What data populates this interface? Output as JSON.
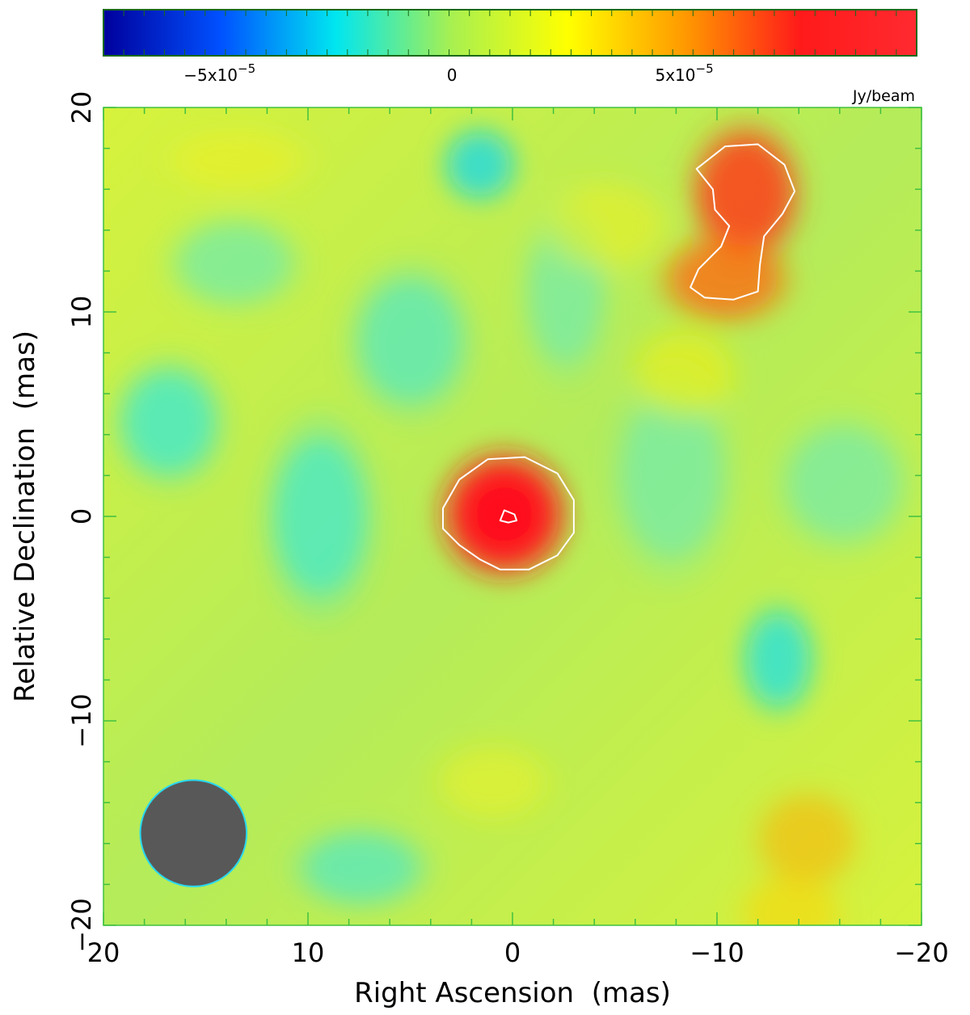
{
  "chart_data": {
    "type": "heatmap",
    "title": "",
    "xlabel": "Right Ascension  (mas)",
    "ylabel": "Relative Declination  (mas)",
    "xlim": [
      20,
      -20
    ],
    "ylim": [
      -20,
      20
    ],
    "x_ticks": [
      20,
      10,
      0,
      -10,
      -20
    ],
    "y_ticks": [
      20,
      10,
      0,
      -10,
      -20
    ],
    "x_tick_labels": [
      "20",
      "10",
      "0",
      "−10",
      "−20"
    ],
    "y_tick_labels": [
      "20",
      "10",
      "0",
      "−10",
      "−20"
    ],
    "colorbar": {
      "unit": "Jy/beam",
      "range": [
        -7.5e-05,
        0.0001
      ],
      "ticks": [
        -5e-05,
        0,
        5e-05
      ],
      "tick_labels": [
        "−5x10",
        "0",
        "5x10"
      ],
      "tick_exponents": [
        "−5",
        "",
        "−5"
      ],
      "colormap": [
        "#00009c",
        "#0050ff",
        "#00e6f0",
        "#a8f050",
        "#ffff00",
        "#ff9a00",
        "#ff1a1a",
        "#ff2a30"
      ]
    },
    "background_colors": [
      "#b4ec5a",
      "#d6f23c"
    ],
    "components": [
      {
        "x": 0.4,
        "y": 0.1,
        "amp": 1.0,
        "sx": 1.8,
        "sy": 1.8,
        "color": "#ff1a1a"
      },
      {
        "x": -11.4,
        "y": 15.8,
        "amp": 0.75,
        "sx": 1.6,
        "sy": 2.0,
        "color": "#ff3a1a"
      },
      {
        "x": -10.4,
        "y": 11.6,
        "amp": 0.65,
        "sx": 1.9,
        "sy": 1.3,
        "color": "#ff6a10"
      },
      {
        "x": -14.4,
        "y": -15.8,
        "amp": 0.35,
        "sx": 1.6,
        "sy": 1.5,
        "color": "#ffae00"
      },
      {
        "x": -13.6,
        "y": -19.4,
        "amp": 0.35,
        "sx": 1.6,
        "sy": 1.2,
        "color": "#ffd400"
      },
      {
        "x": 1.6,
        "y": 17.2,
        "amp": 0.6,
        "sx": 1.1,
        "sy": 1.1,
        "color": "#10d8f0"
      },
      {
        "x": -13.0,
        "y": -7.0,
        "amp": 0.55,
        "sx": 1.1,
        "sy": 1.6,
        "color": "#10e0f0"
      },
      {
        "x": 16.8,
        "y": 4.6,
        "amp": 0.55,
        "sx": 1.6,
        "sy": 1.8,
        "color": "#30e8e0"
      },
      {
        "x": 9.4,
        "y": 0.0,
        "amp": 0.5,
        "sx": 1.6,
        "sy": 2.8,
        "color": "#30e8e0"
      },
      {
        "x": 5.0,
        "y": 8.6,
        "amp": 0.45,
        "sx": 1.8,
        "sy": 2.2,
        "color": "#40e8d8"
      },
      {
        "x": 13.6,
        "y": 12.4,
        "amp": 0.35,
        "sx": 2.0,
        "sy": 1.4,
        "color": "#50ecd0"
      },
      {
        "x": 7.4,
        "y": -17.2,
        "amp": 0.45,
        "sx": 2.0,
        "sy": 1.2,
        "color": "#40e8d8"
      },
      {
        "x": -7.8,
        "y": 2.0,
        "amp": 0.35,
        "sx": 1.8,
        "sy": 3.0,
        "color": "#58eccc"
      },
      {
        "x": -16.2,
        "y": 1.6,
        "amp": 0.35,
        "sx": 2.0,
        "sy": 2.0,
        "color": "#58eccc"
      },
      {
        "x": -2.6,
        "y": 11.0,
        "amp": 0.35,
        "sx": 1.3,
        "sy": 2.6,
        "color": "#58eccc"
      },
      {
        "x": 13.4,
        "y": 17.4,
        "amp": 0.35,
        "sx": 2.2,
        "sy": 1.0,
        "color": "#f0f020"
      },
      {
        "x": -4.6,
        "y": 14.2,
        "amp": 0.35,
        "sx": 2.0,
        "sy": 1.4,
        "color": "#f0f020"
      },
      {
        "x": -8.4,
        "y": 7.0,
        "amp": 0.45,
        "sx": 1.6,
        "sy": 1.4,
        "color": "#f0f010"
      },
      {
        "x": 1.0,
        "y": -13.0,
        "amp": 0.3,
        "sx": 1.8,
        "sy": 1.2,
        "color": "#f0f020"
      }
    ],
    "contours": [
      {
        "level": "outer",
        "color": "#ffffff",
        "points": [
          [
            -9.0,
            17.0
          ],
          [
            -10.4,
            18.1
          ],
          [
            -12.0,
            18.2
          ],
          [
            -13.3,
            17.2
          ],
          [
            -13.8,
            15.9
          ],
          [
            -13.2,
            14.8
          ],
          [
            -12.3,
            13.7
          ],
          [
            -12.1,
            12.3
          ],
          [
            -12.0,
            11.0
          ],
          [
            -10.8,
            10.6
          ],
          [
            -9.4,
            10.7
          ],
          [
            -8.7,
            11.2
          ],
          [
            -9.1,
            12.1
          ],
          [
            -10.2,
            13.2
          ],
          [
            -10.6,
            14.2
          ],
          [
            -9.9,
            15.0
          ],
          [
            -9.8,
            16.0
          ]
        ]
      },
      {
        "level": "outer",
        "color": "#ffffff",
        "points": [
          [
            3.4,
            0.4
          ],
          [
            2.6,
            1.8
          ],
          [
            1.2,
            2.8
          ],
          [
            -0.6,
            2.9
          ],
          [
            -2.2,
            2.1
          ],
          [
            -3.0,
            0.8
          ],
          [
            -3.0,
            -0.8
          ],
          [
            -2.2,
            -1.9
          ],
          [
            -0.8,
            -2.6
          ],
          [
            0.6,
            -2.6
          ],
          [
            1.6,
            -2.1
          ],
          [
            2.6,
            -1.4
          ],
          [
            3.4,
            -0.6
          ]
        ]
      },
      {
        "level": "peak",
        "color": "#ffffff",
        "points": [
          [
            0.6,
            -0.2
          ],
          [
            0.4,
            0.3
          ],
          [
            -0.1,
            0.1
          ],
          [
            -0.2,
            -0.2
          ],
          [
            0.2,
            -0.3
          ]
        ]
      }
    ],
    "beam": {
      "x": 15.6,
      "y": -15.5,
      "major": 5.2,
      "minor": 5.2,
      "color": "#585858",
      "edge": "#28d8f0"
    }
  }
}
